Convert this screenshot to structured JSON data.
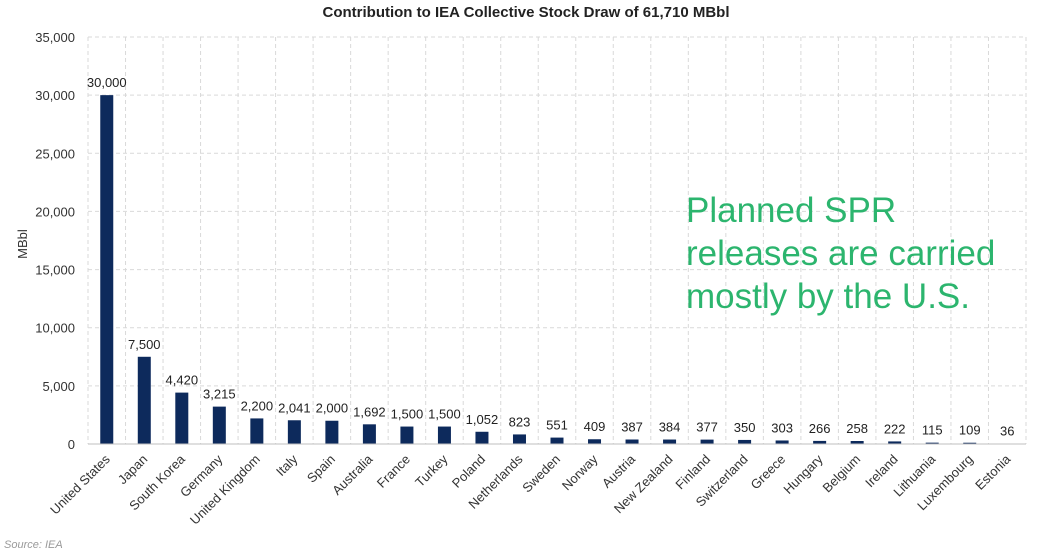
{
  "chart_data": {
    "type": "bar",
    "title": "Contribution to IEA Collective Stock Draw of 61,710 MBbl",
    "ylabel": "MBbl",
    "xlabel": "",
    "ylim": [
      0,
      35000
    ],
    "yticks": [
      "0",
      "5,000",
      "10,000",
      "15,000",
      "20,000",
      "25,000",
      "30,000",
      "35,000"
    ],
    "grid": true,
    "bar_color": "#0d2a5c",
    "categories": [
      "United States",
      "Japan",
      "South Korea",
      "Germany",
      "United Kingdom",
      "Italy",
      "Spain",
      "Australia",
      "France",
      "Turkey",
      "Poland",
      "Netherlands",
      "Sweden",
      "Norway",
      "Austria",
      "New Zealand",
      "Finland",
      "Switzerland",
      "Greece",
      "Hungary",
      "Belgium",
      "Ireland",
      "Lithuania",
      "Luxembourg",
      "Estonia"
    ],
    "values": [
      30000,
      7500,
      4420,
      3215,
      2200,
      2041,
      2000,
      1692,
      1500,
      1500,
      1052,
      823,
      551,
      409,
      387,
      384,
      377,
      350,
      303,
      266,
      258,
      222,
      115,
      109,
      36
    ],
    "data_labels": [
      "30,000",
      "7,500",
      "4,420",
      "3,215",
      "2,200",
      "2,041",
      "2,000",
      "1,692",
      "1,500",
      "1,500",
      "1,052",
      "823",
      "551",
      "409",
      "387",
      "384",
      "377",
      "350",
      "303",
      "266",
      "258",
      "222",
      "115",
      "109",
      "36"
    ]
  },
  "annotation": {
    "lines": [
      "Planned SPR",
      "releases are carried",
      "mostly by the U.S."
    ],
    "color": "#2cb56e"
  },
  "source": "Source: IEA"
}
